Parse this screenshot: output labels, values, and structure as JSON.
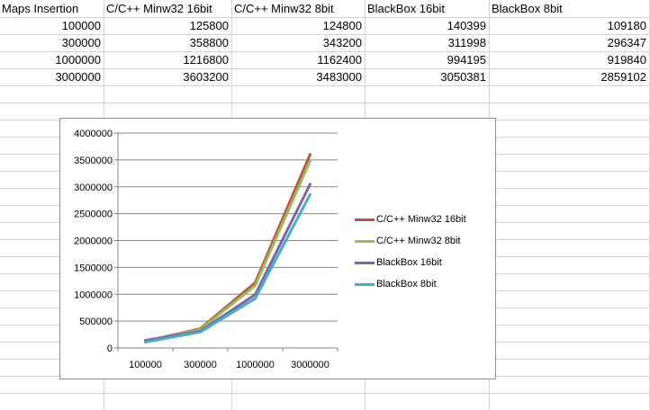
{
  "sheet": {
    "headers": [
      "Maps Insertion",
      "C/C++ Minw32 16bit",
      "C/C++ Minw32 8bit",
      "BlackBox 16bit",
      "BlackBox 8bit"
    ],
    "rows": [
      [
        "100000",
        "125800",
        "124800",
        "140399",
        "109180"
      ],
      [
        "300000",
        "358800",
        "343200",
        "311998",
        "296347"
      ],
      [
        "1000000",
        "1216800",
        "1162400",
        "994195",
        "919840"
      ],
      [
        "3000000",
        "3603200",
        "3483000",
        "3050381",
        "2859102"
      ]
    ]
  },
  "chart_data": {
    "type": "line",
    "title": "",
    "xlabel": "",
    "ylabel": "",
    "categories": [
      "100000",
      "300000",
      "1000000",
      "3000000"
    ],
    "ylim": [
      0,
      4000000
    ],
    "yticks": [
      "4000000",
      "3500000",
      "3000000",
      "2500000",
      "2000000",
      "1500000",
      "1000000",
      "500000",
      "0"
    ],
    "grid": true,
    "legend_position": "right",
    "series": [
      {
        "name": "C/C++ Minw32 16bit",
        "color": "#c0504d",
        "values": [
          125800,
          358800,
          1216800,
          3603200
        ]
      },
      {
        "name": "C/C++ Minw32 8bit",
        "color": "#9bbb59",
        "values": [
          124800,
          343200,
          1162400,
          3483000
        ]
      },
      {
        "name": "BlackBox 16bit",
        "color": "#8064a2",
        "values": [
          140399,
          311998,
          994195,
          3050381
        ]
      },
      {
        "name": "BlackBox 8bit",
        "color": "#4bacc6",
        "values": [
          109180,
          296347,
          919840,
          2859102
        ]
      }
    ]
  }
}
